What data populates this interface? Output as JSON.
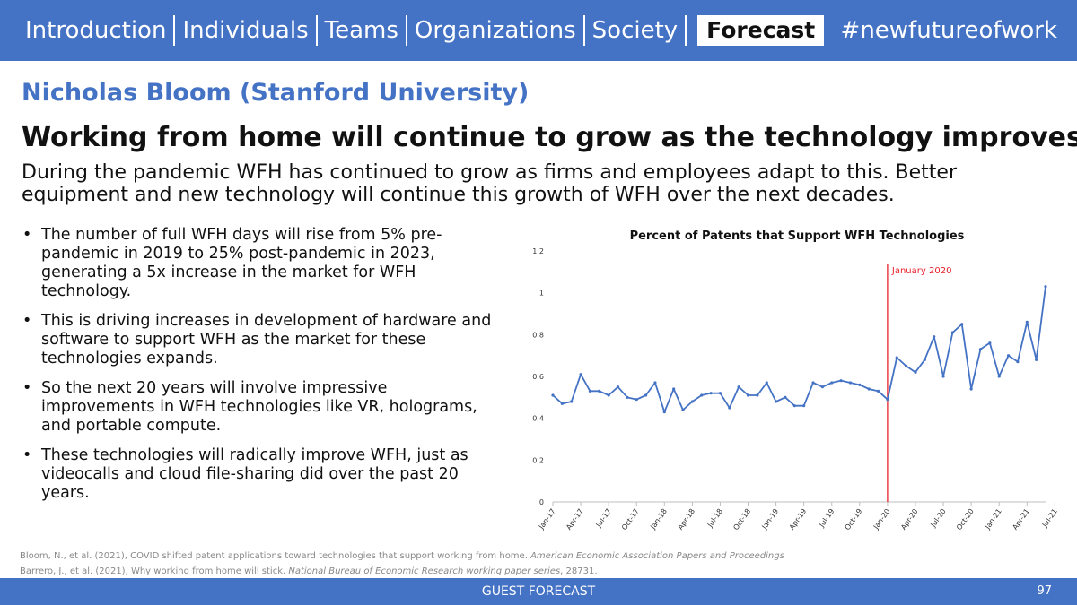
{
  "nav": {
    "items": [
      "Introduction",
      "Individuals",
      "Teams",
      "Organizations",
      "Society",
      "Forecast"
    ],
    "active": "Forecast",
    "hashtag": "#newfutureofwork"
  },
  "speaker": "Nicholas Bloom (Stanford University)",
  "headline": "Working from home will continue to grow as the technology improves",
  "subtitle": "During the pandemic WFH has continued to grow as firms and employees adapt to this. Better equipment and new technology will continue this growth of WFH over the next decades.",
  "bullets": [
    "The number of full WFH days will rise from 5% pre-pandemic in 2019 to 25% post-pandemic in 2023, generating a 5x increase in the market for WFH technology.",
    "This is driving increases in development of hardware and software to support WFH as the market for these technologies expands.",
    "So the next 20 years will involve impressive improvements in WFH technologies like VR, holograms, and portable compute.",
    "These technologies will radically improve WFH, just as videocalls and cloud file-sharing did over the past 20 years."
  ],
  "chart_data": {
    "type": "line",
    "title": "Percent of Patents that Support WFH Technologies",
    "xlabel": "",
    "ylabel": "",
    "ylim": [
      0,
      1.2
    ],
    "yticks": [
      "0",
      "0.2",
      "0.4",
      "0.6",
      "0.8",
      "1",
      "1.2"
    ],
    "xticks": [
      "Jan-17",
      "Apr-17",
      "Jul-17",
      "Oct-17",
      "Jan-18",
      "Apr-18",
      "Jul-18",
      "Oct-18",
      "Jan-19",
      "Apr-19",
      "Jul-19",
      "Oct-19",
      "Jan-20",
      "Apr-20",
      "Jul-20",
      "Oct-20",
      "Jan-21",
      "Apr-21",
      "Jul-21"
    ],
    "annotation": {
      "label": "January 2020",
      "color": "#E8202A"
    },
    "series_color": "#4472C4",
    "grid": false,
    "values": [
      0.51,
      0.47,
      0.48,
      0.61,
      0.53,
      0.53,
      0.51,
      0.55,
      0.5,
      0.49,
      0.51,
      0.57,
      0.43,
      0.54,
      0.44,
      0.48,
      0.51,
      0.52,
      0.52,
      0.45,
      0.55,
      0.51,
      0.51,
      0.57,
      0.48,
      0.5,
      0.46,
      0.46,
      0.57,
      0.55,
      0.57,
      0.58,
      0.57,
      0.56,
      0.54,
      0.53,
      0.49,
      0.69,
      0.65,
      0.62,
      0.68,
      0.79,
      0.6,
      0.81,
      0.85,
      0.54,
      0.73,
      0.76,
      0.6,
      0.7,
      0.67,
      0.86,
      0.68,
      1.03
    ]
  },
  "references": [
    {
      "text": "Bloom, N., et al. (2021),  COVID shifted patent applications toward technologies that support working from home.",
      "source": "American Economic Association Papers and Proceedings"
    },
    {
      "text": "Barrero, J., et al. (2021),  Why working from home will stick.",
      "source": "National Bureau of Economic Research working paper series",
      "suffix": ", 28731."
    }
  ],
  "footer": {
    "label": "GUEST FORECAST",
    "page": "97"
  }
}
